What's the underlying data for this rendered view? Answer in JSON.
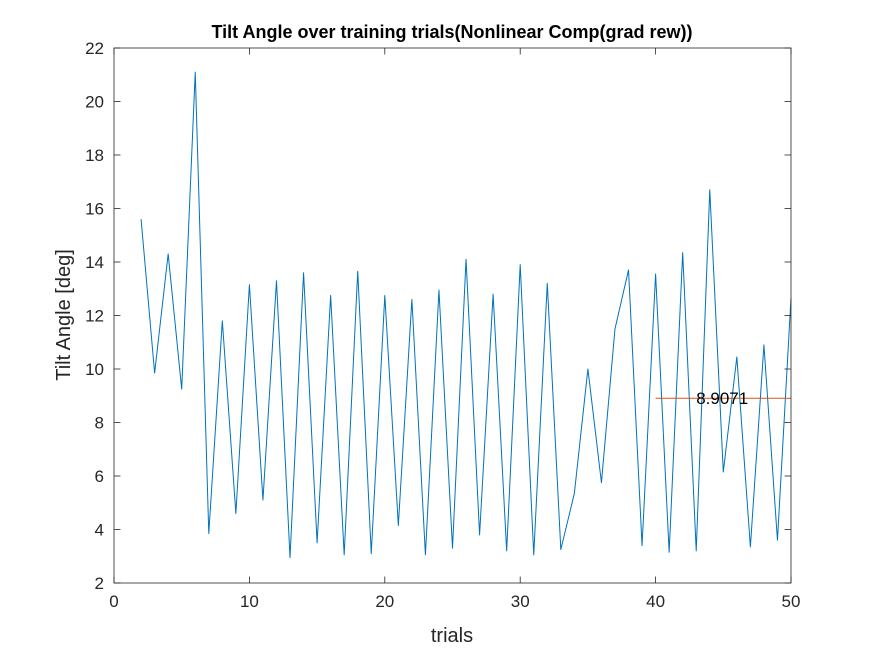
{
  "chart_data": {
    "type": "line",
    "title": "Tilt Angle over training trials(Nonlinear Comp(grad rew))",
    "xlabel": "trials",
    "ylabel": "Tilt Angle [deg]",
    "xlim": [
      0,
      50
    ],
    "ylim": [
      2,
      22
    ],
    "xticks": [
      0,
      10,
      20,
      30,
      40,
      50
    ],
    "yticks": [
      2,
      4,
      6,
      8,
      10,
      12,
      14,
      16,
      18,
      20,
      22
    ],
    "grid": false,
    "legend": "none",
    "series": [
      {
        "color": "#0072BD",
        "x": [
          2,
          3,
          4,
          5,
          6,
          7,
          8,
          9,
          10,
          11,
          12,
          13,
          14,
          15,
          16,
          17,
          18,
          19,
          20,
          21,
          22,
          23,
          24,
          25,
          26,
          27,
          28,
          29,
          30,
          31,
          32,
          33,
          34,
          35,
          36,
          37,
          38,
          39,
          40,
          41,
          42,
          43,
          44,
          45,
          46,
          47,
          48,
          49,
          50
        ],
        "y": [
          15.6,
          9.85,
          14.3,
          9.25,
          21.1,
          3.85,
          11.8,
          4.6,
          13.15,
          5.1,
          13.3,
          2.95,
          13.6,
          3.5,
          12.75,
          3.05,
          13.65,
          3.1,
          12.75,
          4.15,
          12.6,
          3.05,
          12.95,
          3.3,
          14.1,
          3.8,
          12.8,
          3.2,
          13.9,
          3.05,
          13.2,
          3.25,
          5.35,
          10.0,
          5.75,
          11.5,
          13.7,
          3.4,
          13.55,
          3.15,
          14.35,
          3.2,
          16.7,
          6.15,
          10.45,
          3.35,
          10.9,
          3.6,
          12.65
        ]
      },
      {
        "color": "#D95319",
        "x": [
          40,
          50
        ],
        "y": [
          8.9071,
          8.9071
        ]
      }
    ],
    "annotations": [
      {
        "text": "8.9071",
        "x": 43.0,
        "y": 8.9071
      }
    ]
  }
}
